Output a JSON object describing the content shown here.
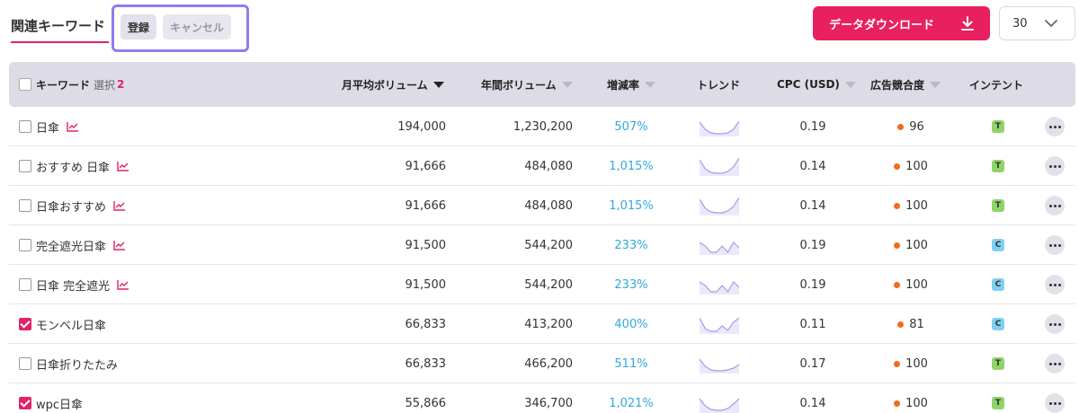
{
  "header": {
    "title": "関連キーワード",
    "register_label": "登録",
    "cancel_label": "キャンセル",
    "download_label": "データダウンロード",
    "page_size": "30"
  },
  "table": {
    "columns": {
      "keyword": "キーワード",
      "selection_label": "選択",
      "selection_count": "2",
      "monthly_volume": "月平均ボリューム",
      "yearly_volume": "年間ボリューム",
      "growth": "増減率",
      "trend": "トレンド",
      "cpc": "CPC (USD)",
      "competition": "広告競合度",
      "intent": "インテント"
    },
    "rows": [
      {
        "keyword": "日傘",
        "checked": false,
        "has_trend_link": true,
        "monthly": "194,000",
        "yearly": "1,230,200",
        "growth": "507%",
        "cpc": "0.19",
        "competition": "96",
        "intent": "T",
        "spark": [
          6,
          14,
          18,
          19,
          19,
          18,
          14,
          5
        ]
      },
      {
        "keyword": "おすすめ 日傘",
        "checked": false,
        "has_trend_link": true,
        "monthly": "91,666",
        "yearly": "484,080",
        "growth": "1,015%",
        "cpc": "0.14",
        "competition": "100",
        "intent": "T",
        "spark": [
          4,
          14,
          18,
          19,
          19,
          17,
          12,
          2
        ]
      },
      {
        "keyword": "日傘おすすめ",
        "checked": false,
        "has_trend_link": true,
        "monthly": "91,666",
        "yearly": "484,080",
        "growth": "1,015%",
        "cpc": "0.14",
        "competition": "100",
        "intent": "T",
        "spark": [
          4,
          14,
          18,
          19,
          19,
          17,
          12,
          2
        ]
      },
      {
        "keyword": "完全遮光日傘",
        "checked": false,
        "has_trend_link": true,
        "monthly": "91,500",
        "yearly": "544,200",
        "growth": "233%",
        "cpc": "0.19",
        "competition": "100",
        "intent": "C",
        "spark": [
          8,
          12,
          19,
          19,
          12,
          19,
          8,
          14
        ]
      },
      {
        "keyword": "日傘 完全遮光",
        "checked": false,
        "has_trend_link": true,
        "monthly": "91,500",
        "yearly": "544,200",
        "growth": "233%",
        "cpc": "0.19",
        "competition": "100",
        "intent": "C",
        "spark": [
          8,
          12,
          19,
          19,
          12,
          19,
          8,
          14
        ]
      },
      {
        "keyword": "モンベル日傘",
        "checked": true,
        "has_trend_link": false,
        "monthly": "66,833",
        "yearly": "413,200",
        "growth": "400%",
        "cpc": "0.11",
        "competition": "81",
        "intent": "C",
        "spark": [
          4,
          16,
          19,
          19,
          13,
          18,
          9,
          4
        ]
      },
      {
        "keyword": "日傘折りたたみ",
        "checked": false,
        "has_trend_link": false,
        "monthly": "66,833",
        "yearly": "466,200",
        "growth": "511%",
        "cpc": "0.17",
        "competition": "100",
        "intent": "T",
        "spark": [
          6,
          14,
          18,
          19,
          19,
          18,
          16,
          12
        ]
      },
      {
        "keyword": "wpc日傘",
        "checked": true,
        "has_trend_link": false,
        "monthly": "55,866",
        "yearly": "346,700",
        "growth": "1,021%",
        "cpc": "0.14",
        "competition": "100",
        "intent": "T",
        "spark": [
          6,
          14,
          18,
          19,
          19,
          17,
          12,
          6
        ]
      }
    ]
  },
  "colors": {
    "accent": "#e0226a",
    "download_bg": "#e8205f",
    "highlight_border": "#8f7cf0",
    "growth_text": "#2fa8e0",
    "competition_dot": "#f26a1b",
    "intent_T": "#8fd36a",
    "intent_C": "#7fd0f0",
    "sparkline": "#a99ae8"
  }
}
